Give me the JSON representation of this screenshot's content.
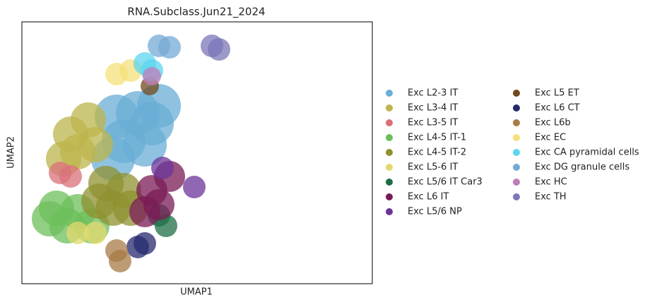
{
  "chart_data": {
    "type": "scatter",
    "title": "RNA.Subclass.Jun21_2024",
    "xlabel": "UMAP1",
    "ylabel": "UMAP2",
    "xlim": [
      0,
      496
    ],
    "ylim": [
      0,
      371
    ],
    "series": [
      {
        "name": "Exc L2-3 IT",
        "color": "#6aaed6",
        "x": [
          134,
          164,
          184,
          144,
          174,
          129,
          194
        ],
        "y": [
          237,
          242,
          227,
          202,
          197,
          177,
          252
        ]
      },
      {
        "name": "Exc L3-4 IT",
        "color": "#bcb64c",
        "x": [
          69,
          94,
          79,
          104,
          59
        ],
        "y": [
          212,
          232,
          187,
          197,
          177
        ]
      },
      {
        "name": "Exc L3-5 IT",
        "color": "#d9707a",
        "x": [
          54,
          69
        ],
        "y": [
          157,
          152
        ]
      },
      {
        "name": "Exc L4-5 IT-1",
        "color": "#6cbf5a",
        "x": [
          49,
          79,
          64,
          99,
          39
        ],
        "y": [
          107,
          102,
          82,
          82,
          92
        ]
      },
      {
        "name": "Exc L4-5 IT-2",
        "color": "#8f9130",
        "x": [
          119,
          144,
          129,
          154,
          109
        ],
        "y": [
          142,
          132,
          107,
          107,
          117
        ]
      },
      {
        "name": "Exc L5-6 IT",
        "color": "#e4d96f",
        "x": [
          104,
          79
        ],
        "y": [
          72,
          72
        ]
      },
      {
        "name": "Exc L5/6 IT Car3",
        "color": "#1d6e44",
        "x": [
          204,
          194
        ],
        "y": [
          82,
          97
        ]
      },
      {
        "name": "Exc L6 IT",
        "color": "#7a1b55",
        "x": [
          184,
          194,
          174,
          209
        ],
        "y": [
          132,
          112,
          102,
          152
        ]
      },
      {
        "name": "Exc L5/6 NP",
        "color": "#6b3499",
        "x": [
          244,
          199
        ],
        "y": [
          137,
          164
        ]
      },
      {
        "name": "Exc L5 ET",
        "color": "#6f4a1f",
        "x": [
          181
        ],
        "y": [
          280
        ]
      },
      {
        "name": "Exc L6 CT",
        "color": "#272a6d",
        "x": [
          164,
          174
        ],
        "y": [
          52,
          57
        ]
      },
      {
        "name": "Exc L6b",
        "color": "#a77a46",
        "x": [
          134,
          139
        ],
        "y": [
          47,
          32
        ]
      },
      {
        "name": "Exc EC",
        "color": "#f5e07a",
        "x": [
          134,
          154
        ],
        "y": [
          297,
          302
        ]
      },
      {
        "name": "Exc CA pyramidal cells",
        "color": "#5bd6ee",
        "x": [
          174,
          184
        ],
        "y": [
          312,
          302
        ]
      },
      {
        "name": "Exc DG granule cells",
        "color": "#74a9d4",
        "x": [
          209,
          194
        ],
        "y": [
          335,
          337
        ]
      },
      {
        "name": "Exc HC",
        "color": "#c07cb9",
        "x": [
          184
        ],
        "y": [
          294
        ]
      },
      {
        "name": "Exc TH",
        "color": "#7b76b8",
        "x": [
          269,
          279
        ],
        "y": [
          337,
          332
        ]
      }
    ]
  }
}
